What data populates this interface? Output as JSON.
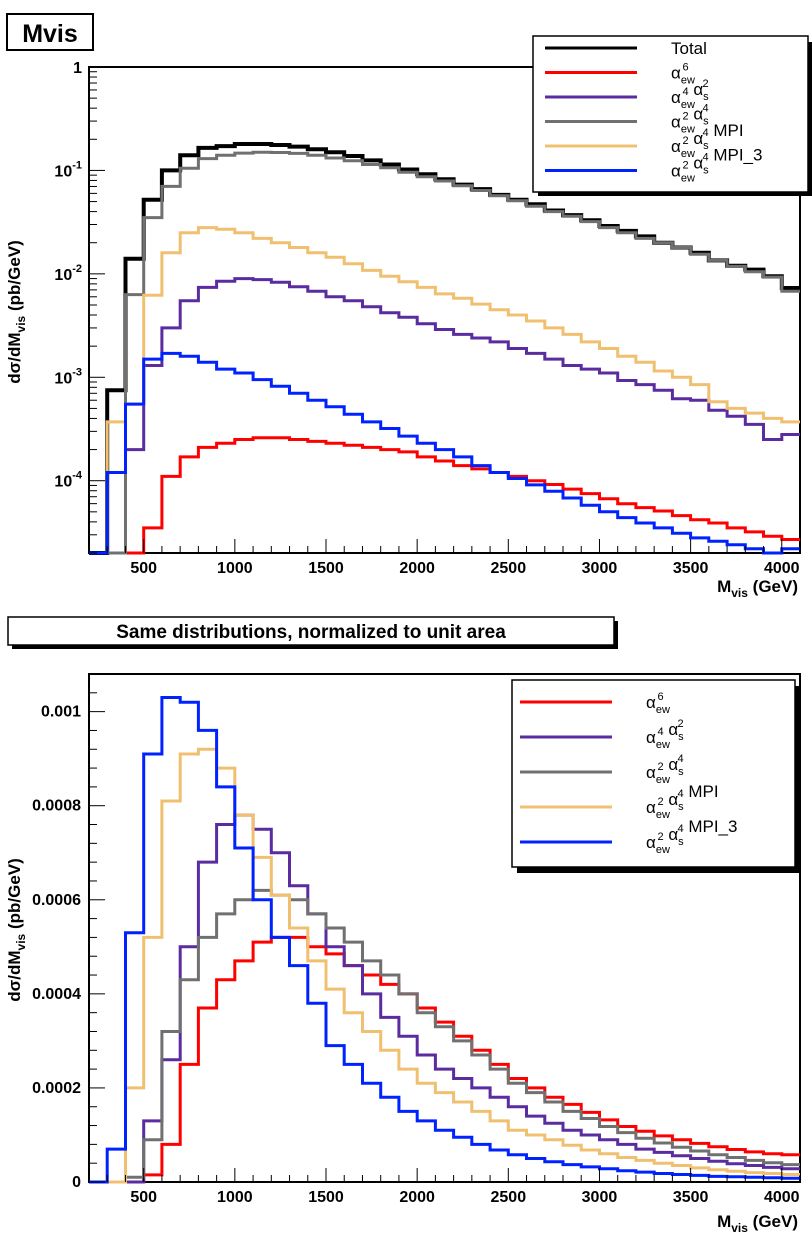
{
  "chart_data": [
    {
      "type": "line",
      "title": "Mvis",
      "xlabel": "M_vis (GeV)",
      "ylabel": "dσ/dM_vis (pb/GeV)",
      "xlim": [
        200,
        4100
      ],
      "ylim": [
        2e-05,
        1
      ],
      "yscale": "log",
      "grid": false,
      "legend_position": "top-right",
      "x_ticks": [
        500,
        1000,
        1500,
        2000,
        2500,
        3000,
        3500,
        4000
      ],
      "y_ticks": [
        0.0001,
        0.001,
        0.01,
        0.1,
        1
      ],
      "bin_edges": [
        200,
        300,
        400,
        500,
        600,
        700,
        800,
        900,
        1000,
        1100,
        1200,
        1300,
        1400,
        1500,
        1600,
        1700,
        1800,
        1900,
        2000,
        2100,
        2200,
        2300,
        2400,
        2500,
        2600,
        2700,
        2800,
        2900,
        3000,
        3100,
        3200,
        3300,
        3400,
        3500,
        3600,
        3700,
        3800,
        3900,
        4000,
        4100
      ],
      "series": [
        {
          "name": "Total",
          "color": "#000000",
          "values": [
            null,
            0.00075,
            0.014,
            0.052,
            0.1,
            0.14,
            0.165,
            0.172,
            0.18,
            0.18,
            0.176,
            0.17,
            0.16,
            0.15,
            0.138,
            0.125,
            0.114,
            0.102,
            0.092,
            0.082,
            0.073,
            0.066,
            0.058,
            0.052,
            0.047,
            0.041,
            0.037,
            0.033,
            0.029,
            0.026,
            0.023,
            0.02,
            0.018,
            0.016,
            0.0135,
            0.012,
            0.011,
            0.0095,
            0.0073
          ]
        },
        {
          "name": "α_ew^6",
          "color": "#ff0000",
          "values": [
            null,
            null,
            null,
            3.5e-05,
            0.00011,
            0.00017,
            0.00021,
            0.00023,
            0.00025,
            0.00026,
            0.00026,
            0.00025,
            0.00024,
            0.00023,
            0.00022,
            0.00021,
            0.0002,
            0.00019,
            0.00017,
            0.000155,
            0.00014,
            0.00013,
            0.00012,
            0.00011,
            0.0001,
            9.2e-05,
            8.3e-05,
            7.5e-05,
            6.7e-05,
            6e-05,
            5.5e-05,
            5.1e-05,
            4.6e-05,
            4.2e-05,
            3.9e-05,
            3.5e-05,
            3.2e-05,
            2.9e-05,
            2.7e-05
          ]
        },
        {
          "name": "α_ew^4 α_s^2",
          "color": "#5a2ca0",
          "values": [
            null,
            null,
            0.0002,
            0.0013,
            0.003,
            0.0055,
            0.0074,
            0.0085,
            0.009,
            0.0088,
            0.0083,
            0.0075,
            0.0068,
            0.006,
            0.0055,
            0.0048,
            0.0042,
            0.0038,
            0.0033,
            0.0029,
            0.0026,
            0.0024,
            0.0022,
            0.0019,
            0.0017,
            0.0015,
            0.0013,
            0.0012,
            0.0011,
            0.00093,
            0.00085,
            0.00075,
            0.00062,
            0.0006,
            0.00048,
            0.00042,
            0.00035,
            0.00025,
            0.00028
          ]
        },
        {
          "name": "α_ew^2 α_s^4",
          "color": "#707070",
          "values": [
            null,
            null,
            0.0063,
            0.035,
            0.07,
            0.105,
            0.13,
            0.14,
            0.147,
            0.15,
            0.149,
            0.146,
            0.14,
            0.132,
            0.124,
            0.114,
            0.106,
            0.096,
            0.087,
            0.079,
            0.071,
            0.064,
            0.057,
            0.051,
            0.045,
            0.04,
            0.036,
            0.032,
            0.028,
            0.025,
            0.022,
            0.02,
            0.018,
            0.0155,
            0.0135,
            0.0118,
            0.0105,
            0.0093,
            0.0068
          ]
        },
        {
          "name": "α_ew^2 α_s^4 MPI",
          "color": "#f0c070",
          "values": [
            null,
            0.00037,
            0.00055,
            0.0062,
            0.016,
            0.025,
            0.028,
            0.027,
            0.025,
            0.022,
            0.02,
            0.018,
            0.016,
            0.0145,
            0.0125,
            0.0108,
            0.0095,
            0.0084,
            0.0074,
            0.0064,
            0.0058,
            0.0051,
            0.0045,
            0.004,
            0.0035,
            0.003,
            0.0026,
            0.0022,
            0.0019,
            0.0016,
            0.0014,
            0.00115,
            0.001,
            0.00085,
            0.00058,
            0.0005,
            0.00045,
            0.0004,
            0.00037
          ]
        },
        {
          "name": "α_ew^2 α_s^4 MPI_3",
          "color": "#0022ff",
          "values": [
            null,
            0.00012,
            0.00055,
            0.0015,
            0.0017,
            0.0016,
            0.0014,
            0.0012,
            0.0011,
            0.00095,
            0.00082,
            0.0007,
            0.0006,
            0.00052,
            0.00044,
            0.00037,
            0.00032,
            0.00027,
            0.00023,
            0.0002,
            0.00017,
            0.00014,
            0.00012,
            0.000105,
            9.1e-05,
            7.9e-05,
            6.8e-05,
            5.8e-05,
            5e-05,
            4.4e-05,
            3.9e-05,
            3.5e-05,
            3.1e-05,
            2.8e-05,
            2.6e-05,
            2.4e-05,
            2.2e-05,
            2e-05,
            2.2e-05
          ]
        }
      ]
    },
    {
      "type": "line",
      "title": "Same distributions, normalized to unit area",
      "xlabel": "M_vis (GeV)",
      "ylabel": "dσ/dM_vis (pb/GeV)",
      "xlim": [
        200,
        4100
      ],
      "ylim": [
        0,
        0.00108
      ],
      "grid": false,
      "legend_position": "top-right",
      "x_ticks": [
        500,
        1000,
        1500,
        2000,
        2500,
        3000,
        3500,
        4000
      ],
      "y_ticks": [
        0,
        0.0002,
        0.0004,
        0.0006,
        0.0008,
        0.001
      ],
      "y_tick_labels": [
        "0",
        "0.0002",
        "0.0004",
        "0.0006",
        "0.0008",
        "0.001"
      ],
      "bin_edges": [
        200,
        300,
        400,
        500,
        600,
        700,
        800,
        900,
        1000,
        1100,
        1200,
        1300,
        1400,
        1500,
        1600,
        1700,
        1800,
        1900,
        2000,
        2100,
        2200,
        2300,
        2400,
        2500,
        2600,
        2700,
        2800,
        2900,
        3000,
        3100,
        3200,
        3300,
        3400,
        3500,
        3600,
        3700,
        3800,
        3900,
        4000,
        4100
      ],
      "series": [
        {
          "name": "α_ew^6",
          "color": "#ff0000",
          "values": [
            0,
            0,
            0,
            1.5e-05,
            8e-05,
            0.00025,
            0.00037,
            0.00043,
            0.00047,
            0.00051,
            0.00052,
            0.00052,
            0.0005,
            0.000485,
            0.00046,
            0.00044,
            0.00042,
            0.0004,
            0.00037,
            0.00034,
            0.00031,
            0.00028,
            0.00025,
            0.00022,
            0.0002,
            0.00018,
            0.000165,
            0.000148,
            0.000132,
            0.000118,
            0.000108,
            9.8e-05,
            9e-05,
            8.2e-05,
            7.5e-05,
            6.9e-05,
            6.4e-05,
            6e-05,
            5.8e-05
          ]
        },
        {
          "name": "α_ew^4 α_s^2",
          "color": "#5a2ca0",
          "values": [
            0,
            0,
            0,
            0.00013,
            0.00026,
            0.0005,
            0.00068,
            0.00076,
            0.00078,
            0.00075,
            0.0007,
            0.00063,
            0.00057,
            0.0005,
            0.00046,
            0.0004,
            0.00035,
            0.00031,
            0.00027,
            0.00024,
            0.00022,
            0.0002,
            0.00018,
            0.00016,
            0.00014,
            0.000125,
            0.00011,
            0.0001,
            9e-05,
            8e-05,
            7e-05,
            6.3e-05,
            5.6e-05,
            5e-05,
            4.4e-05,
            3.9e-05,
            3.5e-05,
            3.1e-05,
            2.8e-05
          ]
        },
        {
          "name": "α_ew^2 α_s^4",
          "color": "#707070",
          "values": [
            0,
            0,
            1e-05,
            9e-05,
            0.00032,
            0.00043,
            0.00052,
            0.00057,
            0.0006,
            0.00062,
            0.00061,
            0.0006,
            0.00057,
            0.00054,
            0.00051,
            0.00047,
            0.00044,
            0.0004,
            0.00036,
            0.00033,
            0.0003,
            0.00027,
            0.00024,
            0.00021,
            0.00019,
            0.00017,
            0.00015,
            0.000135,
            0.000118,
            0.000105,
            9.3e-05,
            8.3e-05,
            7.4e-05,
            6.6e-05,
            5.8e-05,
            5.2e-05,
            4.6e-05,
            4.1e-05,
            3.7e-05
          ]
        },
        {
          "name": "α_ew^2 α_s^4 MPI",
          "color": "#f0c070",
          "values": [
            0,
            0,
            0.0002,
            0.00052,
            0.00081,
            0.00091,
            0.00092,
            0.00088,
            0.00078,
            0.00069,
            0.00061,
            0.00054,
            0.00047,
            0.00041,
            0.00036,
            0.00032,
            0.00028,
            0.00024,
            0.00021,
            0.00019,
            0.00017,
            0.00015,
            0.00013,
            0.00011,
            0.0001,
            9e-05,
            7.8e-05,
            6.8e-05,
            6e-05,
            5.2e-05,
            4.6e-05,
            4e-05,
            3.5e-05,
            3e-05,
            2.6e-05,
            2.3e-05,
            2e-05,
            1.8e-05,
            1.6e-05
          ]
        },
        {
          "name": "α_ew^2 α_s^4 MPI_3",
          "color": "#0022ff",
          "values": [
            0,
            7e-05,
            0.00053,
            0.00091,
            0.00103,
            0.00102,
            0.00096,
            0.00084,
            0.00071,
            0.0006,
            0.00052,
            0.00046,
            0.00038,
            0.00029,
            0.00025,
            0.00021,
            0.00018,
            0.00015,
            0.00013,
            0.00011,
            9.5e-05,
            8e-05,
            6.8e-05,
            5.8e-05,
            5e-05,
            4.3e-05,
            3.7e-05,
            3.2e-05,
            2.8e-05,
            2.4e-05,
            2.1e-05,
            1.8e-05,
            1.6e-05,
            1.4e-05,
            1.2e-05,
            1.1e-05,
            1e-05,
            9e-06,
            8e-06
          ]
        }
      ]
    }
  ]
}
